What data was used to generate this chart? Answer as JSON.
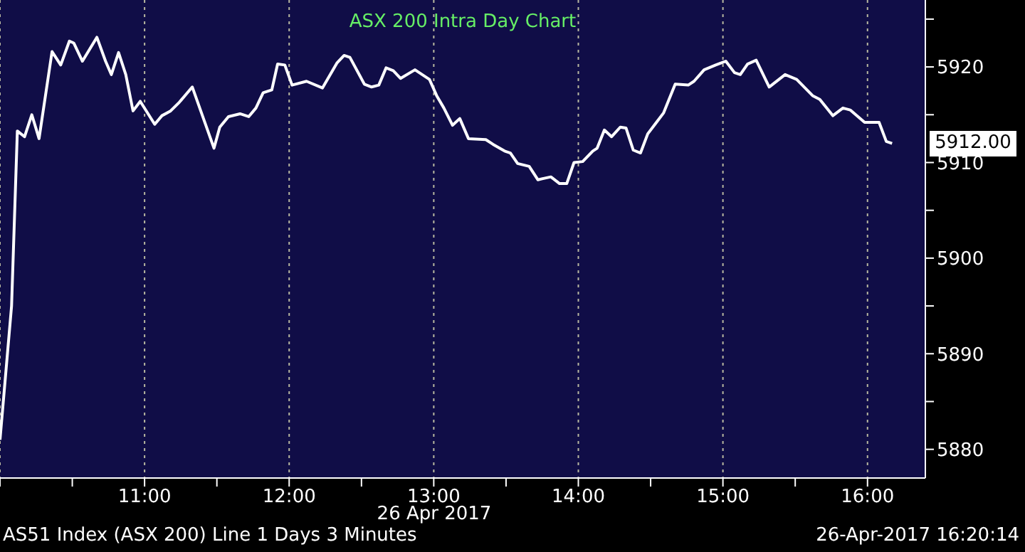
{
  "chart_data": {
    "type": "line",
    "title": "ASX 200 Intra Day Chart",
    "xlabel": "26 Apr 2017",
    "x": [
      10.0,
      10.08,
      10.12,
      10.17,
      10.22,
      10.27,
      10.36,
      10.42,
      10.48,
      10.51,
      10.57,
      10.67,
      10.73,
      10.77,
      10.82,
      10.87,
      10.92,
      10.97,
      11.07,
      11.12,
      11.18,
      11.24,
      11.33,
      11.48,
      11.52,
      11.58,
      11.66,
      11.72,
      11.77,
      11.82,
      11.88,
      11.92,
      11.97,
      12.02,
      12.12,
      12.23,
      12.33,
      12.38,
      12.42,
      12.52,
      12.57,
      12.62,
      12.67,
      12.72,
      12.77,
      12.87,
      12.97,
      13.02,
      13.07,
      13.13,
      13.18,
      13.24,
      13.36,
      13.41,
      13.49,
      13.53,
      13.58,
      13.66,
      13.72,
      13.81,
      13.87,
      13.92,
      13.97,
      14.03,
      14.1,
      14.13,
      14.18,
      14.23,
      14.29,
      14.33,
      14.38,
      14.43,
      14.48,
      14.53,
      14.59,
      14.67,
      14.76,
      14.8,
      14.87,
      14.95,
      15.02,
      15.08,
      15.12,
      15.17,
      15.23,
      15.32,
      15.43,
      15.51,
      15.62,
      15.67,
      15.76,
      15.83,
      15.88,
      15.98,
      16.08,
      16.13,
      16.17
    ],
    "series": [
      {
        "color": "#ffffff",
        "values": [
          5881,
          5895,
          5913.3,
          5912.7,
          5915,
          5912.5,
          5921.6,
          5920.2,
          5922.7,
          5922.5,
          5920.6,
          5923.1,
          5920.6,
          5919.2,
          5921.5,
          5919.2,
          5915.4,
          5916.4,
          5914,
          5914.9,
          5915.4,
          5916.3,
          5917.9,
          5911.5,
          5913.7,
          5914.8,
          5915.1,
          5914.8,
          5915.7,
          5917.3,
          5917.6,
          5920.3,
          5920.2,
          5918.1,
          5918.5,
          5917.8,
          5920.4,
          5921.2,
          5921,
          5918.2,
          5917.9,
          5918.1,
          5919.9,
          5919.6,
          5918.8,
          5919.7,
          5918.7,
          5917,
          5915.7,
          5913.9,
          5914.6,
          5912.5,
          5912.4,
          5911.9,
          5911.2,
          5911,
          5909.9,
          5909.6,
          5908.2,
          5908.5,
          5907.8,
          5907.8,
          5910,
          5910.1,
          5911.2,
          5911.5,
          5913.4,
          5912.7,
          5913.7,
          5913.6,
          5911.3,
          5911,
          5913,
          5914,
          5915.2,
          5918.2,
          5918.1,
          5918.5,
          5919.7,
          5920.2,
          5920.6,
          5919.4,
          5919.2,
          5920.3,
          5920.7,
          5917.9,
          5919.2,
          5918.7,
          5917,
          5916.6,
          5914.9,
          5915.7,
          5915.5,
          5914.2,
          5914.2,
          5912.2,
          5912
        ]
      }
    ],
    "xlim": [
      10,
      16.4
    ],
    "xticks": [
      {
        "value": 10,
        "label": null
      },
      {
        "value": 10.5,
        "label": null
      },
      {
        "value": 11,
        "label": "11:00"
      },
      {
        "value": 11.5,
        "label": null
      },
      {
        "value": 12,
        "label": "12:00"
      },
      {
        "value": 12.5,
        "label": null
      },
      {
        "value": 13,
        "label": "13:00"
      },
      {
        "value": 13.5,
        "label": null
      },
      {
        "value": 14,
        "label": "14:00"
      },
      {
        "value": 14.5,
        "label": null
      },
      {
        "value": 15,
        "label": "15:00"
      },
      {
        "value": 15.5,
        "label": null
      },
      {
        "value": 16,
        "label": "16:00"
      }
    ],
    "ylim": [
      5877,
      5927
    ],
    "yticks": [
      5880,
      {
        "value": 5885,
        "label": null
      },
      5890,
      {
        "value": 5895,
        "label": null
      },
      5900,
      {
        "value": 5905,
        "label": null
      },
      5910,
      {
        "value": 5915,
        "label": null
      },
      5920,
      {
        "value": 5925,
        "label": null
      }
    ],
    "grid": true,
    "line_style": "solid",
    "annotations": [
      {
        "text": "5912.00",
        "x": 16.17,
        "y": 5912
      },
      "AS51 Index (ASX 200) Line 1 Days 3 Minutes",
      "26-Apr-2017 16:20:14"
    ]
  }
}
